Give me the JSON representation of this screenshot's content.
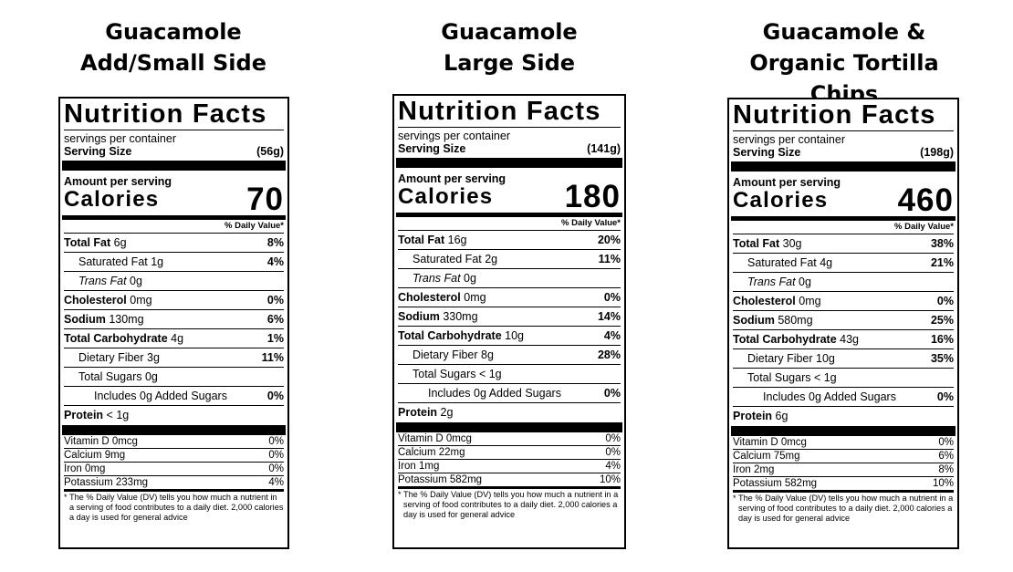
{
  "labels": [
    {
      "heading": [
        "Guacamole",
        "Add/Small Side"
      ],
      "title": "Nutrition Facts",
      "servings_text": "servings per container",
      "serving_size_label": "Serving Size",
      "serving_size_value": "(56g)",
      "amount_per_serving": "Amount per serving",
      "calories_label": "Calories",
      "calories_value": "70",
      "dv_header": "% Daily Value*",
      "total_fat": {
        "label": "Total Fat",
        "amount": "6g",
        "pct": "8%"
      },
      "sat_fat": {
        "label": "Saturated Fat 1g",
        "pct": "4%"
      },
      "trans_fat": {
        "label": "Trans Fat",
        "amount": "0g"
      },
      "cholesterol": {
        "label": "Cholesterol",
        "amount": "0mg",
        "pct": "0%"
      },
      "sodium": {
        "label": "Sodium",
        "amount": "130mg",
        "pct": "6%"
      },
      "total_carb": {
        "label": "Total Carbohydrate",
        "amount": "4g",
        "pct": "1%"
      },
      "fiber": {
        "label": "Dietary Fiber 3g",
        "pct": "11%"
      },
      "sugars": {
        "label": "Total Sugars 0g"
      },
      "added_sugars": {
        "label": "Includes 0g Added Sugars",
        "pct": "0%"
      },
      "protein": {
        "label": "Protein",
        "amount": "< 1g"
      },
      "vitamin_d": {
        "label": "Vitamin D 0mcg",
        "pct": "0%"
      },
      "calcium": {
        "label": "Calcium 9mg",
        "pct": "0%"
      },
      "iron": {
        "label": "Iron 0mg",
        "pct": "0%"
      },
      "potassium": {
        "label": "Potassium 233mg",
        "pct": "4%"
      },
      "footnote": "* The % Daily Value (DV) tells you how much a nutrient in a serving of food contributes to a daily diet. 2,000 calories a day is used for general advice"
    },
    {
      "heading": [
        "Guacamole",
        "Large Side"
      ],
      "title": "Nutrition Facts",
      "servings_text": "servings per container",
      "serving_size_label": "Serving Size",
      "serving_size_value": "(141g)",
      "amount_per_serving": "Amount per serving",
      "calories_label": "Calories",
      "calories_value": "180",
      "dv_header": "% Daily Value*",
      "total_fat": {
        "label": "Total Fat",
        "amount": "16g",
        "pct": "20%"
      },
      "sat_fat": {
        "label": "Saturated Fat 2g",
        "pct": "11%"
      },
      "trans_fat": {
        "label": "Trans Fat",
        "amount": "0g"
      },
      "cholesterol": {
        "label": "Cholesterol",
        "amount": "0mg",
        "pct": "0%"
      },
      "sodium": {
        "label": "Sodium",
        "amount": "330mg",
        "pct": "14%"
      },
      "total_carb": {
        "label": "Total Carbohydrate",
        "amount": "10g",
        "pct": "4%"
      },
      "fiber": {
        "label": "Dietary Fiber 8g",
        "pct": "28%"
      },
      "sugars": {
        "label": "Total Sugars < 1g"
      },
      "added_sugars": {
        "label": "Includes 0g Added Sugars",
        "pct": "0%"
      },
      "protein": {
        "label": "Protein",
        "amount": "2g"
      },
      "vitamin_d": {
        "label": "Vitamin D 0mcg",
        "pct": "0%"
      },
      "calcium": {
        "label": "Calcium 22mg",
        "pct": "0%"
      },
      "iron": {
        "label": "Iron 1mg",
        "pct": "4%"
      },
      "potassium": {
        "label": "Potassium 582mg",
        "pct": "10%"
      },
      "footnote": "* The % Daily Value (DV) tells you how much a nutrient in a serving of food contributes to a daily diet. 2,000 calories a day is used for general advice"
    },
    {
      "heading": [
        "Guacamole &",
        "Organic Tortilla Chips"
      ],
      "title": "Nutrition Facts",
      "servings_text": "servings per container",
      "serving_size_label": "Serving Size",
      "serving_size_value": "(198g)",
      "amount_per_serving": "Amount per serving",
      "calories_label": "Calories",
      "calories_value": "460",
      "dv_header": "% Daily Value*",
      "total_fat": {
        "label": "Total Fat",
        "amount": "30g",
        "pct": "38%"
      },
      "sat_fat": {
        "label": "Saturated Fat 4g",
        "pct": "21%"
      },
      "trans_fat": {
        "label": "Trans Fat",
        "amount": "0g"
      },
      "cholesterol": {
        "label": "Cholesterol",
        "amount": "0mg",
        "pct": "0%"
      },
      "sodium": {
        "label": "Sodium",
        "amount": "580mg",
        "pct": "25%"
      },
      "total_carb": {
        "label": "Total Carbohydrate",
        "amount": "43g",
        "pct": "16%"
      },
      "fiber": {
        "label": "Dietary Fiber 10g",
        "pct": "35%"
      },
      "sugars": {
        "label": "Total Sugars < 1g"
      },
      "added_sugars": {
        "label": "Includes 0g Added Sugars",
        "pct": "0%"
      },
      "protein": {
        "label": "Protein",
        "amount": "6g"
      },
      "vitamin_d": {
        "label": "Vitamin D 0mcg",
        "pct": "0%"
      },
      "calcium": {
        "label": "Calcium 75mg",
        "pct": "6%"
      },
      "iron": {
        "label": "Iron 2mg",
        "pct": "8%"
      },
      "potassium": {
        "label": "Potassium 582mg",
        "pct": "10%"
      },
      "footnote": "* The % Daily Value (DV) tells you how much a nutrient in a serving of food contributes to a daily diet. 2,000 calories a day is used for general advice"
    }
  ]
}
